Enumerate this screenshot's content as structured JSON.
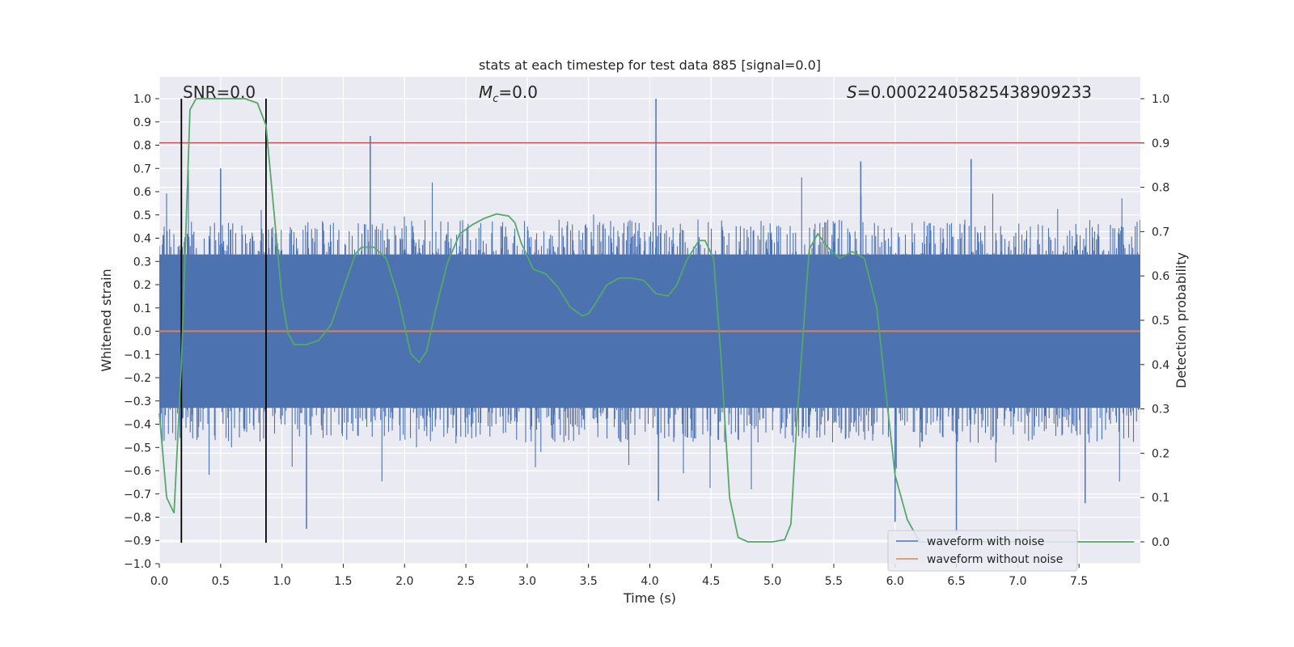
{
  "chart_data": {
    "type": "line",
    "title": "stats at each timestep for test data 885 [signal=0.0]",
    "xlabel": "Time (s)",
    "ylabel": "Whitened strain",
    "y2label": "Detection probability",
    "xlim": [
      0.0,
      8.0
    ],
    "ylim": [
      -1.0,
      1.0
    ],
    "y2lim": [
      -0.048,
      1.048
    ],
    "x_ticks": [
      "0.0",
      "0.5",
      "1.0",
      "1.5",
      "2.0",
      "2.5",
      "3.0",
      "3.5",
      "4.0",
      "4.5",
      "5.0",
      "5.5",
      "6.0",
      "6.5",
      "7.0",
      "7.5"
    ],
    "y_ticks": [
      "-1.0",
      "-0.9",
      "-0.8",
      "-0.7",
      "-0.6",
      "-0.5",
      "-0.4",
      "-0.3",
      "-0.2",
      "-0.1",
      "0.0",
      "0.1",
      "0.2",
      "0.3",
      "0.4",
      "0.5",
      "0.6",
      "0.7",
      "0.8",
      "0.9",
      "1.0"
    ],
    "y2_ticks": [
      "0.0",
      "0.1",
      "0.2",
      "0.3",
      "0.4",
      "0.5",
      "0.6",
      "0.7",
      "0.8",
      "0.9",
      "1.0"
    ],
    "grid": true,
    "legend_position": "lower-right",
    "annotations": {
      "snr": "SNR=0.0",
      "mc_symbol": "M",
      "mc_sub": "c",
      "mc_value": "=0.0",
      "s_symbol": "S",
      "s_value": "=0.00022405825438909233"
    },
    "series": [
      {
        "name": "waveform with noise",
        "color": "#4c72b0",
        "axis": "left",
        "envelope_typical": [
          -0.33,
          0.33
        ],
        "spikes": [
          {
            "x": 1.72,
            "y": 0.84
          },
          {
            "x": 4.05,
            "y": 1.0
          },
          {
            "x": 6.62,
            "y": 0.74
          },
          {
            "x": 5.72,
            "y": 0.73
          },
          {
            "x": 0.5,
            "y": 0.7
          },
          {
            "x": 1.2,
            "y": -0.85
          },
          {
            "x": 6.5,
            "y": -0.87
          },
          {
            "x": 6.0,
            "y": -0.82
          },
          {
            "x": 7.55,
            "y": -0.74
          },
          {
            "x": 4.07,
            "y": -0.73
          }
        ]
      },
      {
        "name": "waveform without noise",
        "color": "#dd8452",
        "axis": "left",
        "x": [
          0.0,
          8.0
        ],
        "y": [
          0.0,
          0.0
        ]
      },
      {
        "color": "#55a868",
        "axis": "right",
        "x": [
          0.0,
          0.06,
          0.12,
          0.18,
          0.25,
          0.3,
          0.35,
          0.5,
          0.7,
          0.8,
          0.87,
          0.95,
          1.0,
          1.05,
          1.1,
          1.15,
          1.2,
          1.3,
          1.4,
          1.5,
          1.6,
          1.65,
          1.75,
          1.85,
          1.95,
          2.05,
          2.12,
          2.18,
          2.25,
          2.35,
          2.45,
          2.55,
          2.65,
          2.75,
          2.85,
          2.9,
          2.95,
          3.05,
          3.15,
          3.25,
          3.35,
          3.45,
          3.5,
          3.55,
          3.65,
          3.75,
          3.85,
          3.95,
          4.05,
          4.15,
          4.22,
          4.3,
          4.4,
          4.45,
          4.52,
          4.58,
          4.65,
          4.72,
          4.8,
          4.87,
          5.0,
          5.1,
          5.15,
          5.2,
          5.3,
          5.37,
          5.45,
          5.55,
          5.65,
          5.75,
          5.85,
          5.92,
          6.0,
          6.1,
          6.2,
          6.3,
          7.95
        ],
        "y": [
          0.29,
          0.1,
          0.065,
          0.4,
          0.975,
          1.0,
          1.0,
          1.0,
          1.0,
          0.99,
          0.94,
          0.7,
          0.55,
          0.47,
          0.445,
          0.445,
          0.445,
          0.455,
          0.49,
          0.57,
          0.65,
          0.665,
          0.665,
          0.64,
          0.55,
          0.425,
          0.405,
          0.43,
          0.52,
          0.63,
          0.695,
          0.715,
          0.73,
          0.74,
          0.735,
          0.72,
          0.675,
          0.615,
          0.605,
          0.575,
          0.53,
          0.51,
          0.515,
          0.535,
          0.58,
          0.595,
          0.595,
          0.59,
          0.56,
          0.555,
          0.58,
          0.635,
          0.68,
          0.68,
          0.64,
          0.42,
          0.1,
          0.01,
          0.0,
          0.0,
          0.0,
          0.005,
          0.04,
          0.28,
          0.66,
          0.695,
          0.665,
          0.64,
          0.655,
          0.64,
          0.53,
          0.35,
          0.15,
          0.05,
          0.0,
          0.0,
          0.0
        ]
      }
    ],
    "hlines": [
      {
        "y": 0.81,
        "color": "#c44e52",
        "axis": "left"
      }
    ],
    "vlines": [
      {
        "x": 0.18,
        "ymin": -0.91,
        "ymax": 1.0,
        "color": "#000000"
      },
      {
        "x": 0.87,
        "ymin": -0.91,
        "ymax": 1.0,
        "color": "#000000"
      }
    ]
  }
}
